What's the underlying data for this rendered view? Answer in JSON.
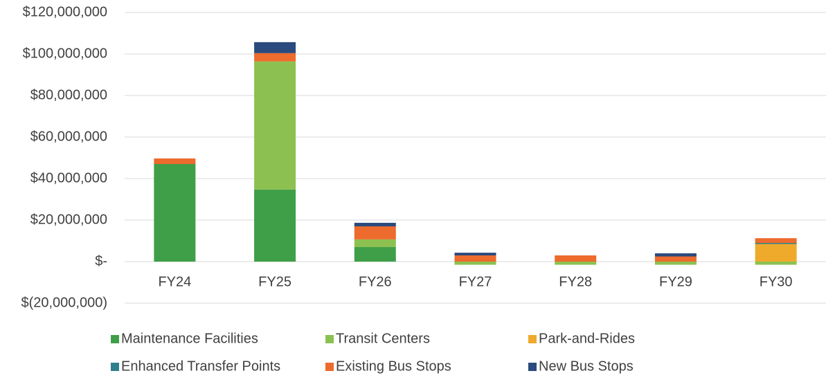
{
  "chart_data": {
    "type": "stacked_bar",
    "categories": [
      "FY24",
      "FY25",
      "FY26",
      "FY27",
      "FY28",
      "FY29",
      "FY30"
    ],
    "series": [
      {
        "name": "Maintenance Facilities",
        "color": "#3f9f48",
        "values": [
          47000000,
          34700000,
          7000000,
          null,
          null,
          null,
          null
        ]
      },
      {
        "name": "Transit Centers",
        "color": "#8cc152",
        "values": [
          null,
          61700000,
          3700000,
          -1500000,
          -1500000,
          -1500000,
          -1500000
        ]
      },
      {
        "name": "Park-and-Rides",
        "color": "#efaa2c",
        "values": [
          null,
          null,
          null,
          null,
          null,
          null,
          8500000
        ]
      },
      {
        "name": "Enhanced Transfer Points",
        "color": "#2f7f8c",
        "values": [
          null,
          null,
          null,
          null,
          null,
          null,
          500000
        ]
      },
      {
        "name": "Existing Bus Stops",
        "color": "#ec6b2d",
        "values": [
          2700000,
          4000000,
          6300000,
          3000000,
          3000000,
          2500000,
          2300000
        ]
      },
      {
        "name": "New Bus Stops",
        "color": "#2b4a7d",
        "values": [
          null,
          5300000,
          1700000,
          1300000,
          null,
          1500000,
          null
        ]
      }
    ],
    "ylim": [
      -20000000,
      120000000
    ],
    "yticks": [
      {
        "value": -20000000,
        "label": "$(20,000,000)"
      },
      {
        "value": 0,
        "label": "$-"
      },
      {
        "value": 20000000,
        "label": "$20,000,000"
      },
      {
        "value": 40000000,
        "label": "$40,000,000"
      },
      {
        "value": 60000000,
        "label": "$60,000,000"
      },
      {
        "value": 80000000,
        "label": "$80,000,000"
      },
      {
        "value": 100000000,
        "label": "$100,000,000"
      },
      {
        "value": 120000000,
        "label": "$120,000,000"
      }
    ],
    "grid": true
  }
}
